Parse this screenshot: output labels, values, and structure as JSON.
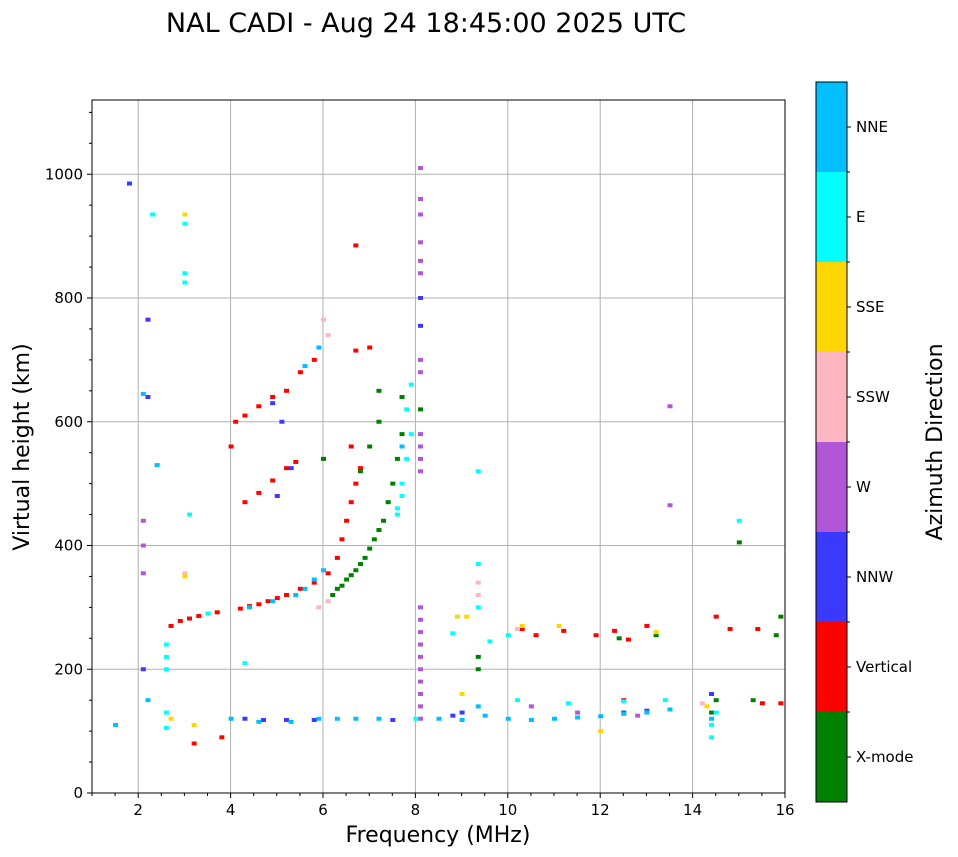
{
  "chart_data": {
    "type": "scatter",
    "title": "NAL CADI - Aug 24 18:45:00 2025 UTC",
    "xlabel": "Frequency (MHz)",
    "ylabel": "Virtual height (km)",
    "xlim": [
      1,
      16
    ],
    "ylim": [
      0,
      1120
    ],
    "x_ticks": [
      2,
      4,
      6,
      8,
      10,
      12,
      14,
      16
    ],
    "y_ticks": [
      0,
      200,
      400,
      600,
      800,
      1000
    ],
    "grid": true,
    "colorbar": {
      "title": "Azimuth Direction",
      "categories": [
        {
          "name": "X-mode",
          "color": "#008000"
        },
        {
          "name": "Vertical",
          "color": "#ff0000"
        },
        {
          "name": "NNW",
          "color": "#3a3aff"
        },
        {
          "name": "W",
          "color": "#b156d6"
        },
        {
          "name": "SSW",
          "color": "#ffb6c1"
        },
        {
          "name": "SSE",
          "color": "#ffd700"
        },
        {
          "name": "E",
          "color": "#00ffff"
        },
        {
          "name": "NNE",
          "color": "#00bfff"
        }
      ]
    },
    "series": [
      {
        "name": "X-mode",
        "points": [
          [
            6.2,
            320
          ],
          [
            6.3,
            330
          ],
          [
            6.4,
            335
          ],
          [
            6.5,
            345
          ],
          [
            6.6,
            352
          ],
          [
            6.7,
            360
          ],
          [
            6.8,
            370
          ],
          [
            6.9,
            380
          ],
          [
            7.0,
            395
          ],
          [
            7.1,
            410
          ],
          [
            7.2,
            425
          ],
          [
            7.3,
            440
          ],
          [
            7.4,
            470
          ],
          [
            7.5,
            500
          ],
          [
            7.6,
            540
          ],
          [
            7.7,
            580
          ],
          [
            7.0,
            560
          ],
          [
            7.2,
            600
          ],
          [
            6.8,
            520
          ],
          [
            9.35,
            220
          ],
          [
            9.35,
            200
          ],
          [
            12.4,
            250
          ],
          [
            13.2,
            255
          ],
          [
            14.4,
            130
          ],
          [
            14.5,
            150
          ],
          [
            15.3,
            150
          ],
          [
            15.8,
            255
          ],
          [
            15.9,
            285
          ],
          [
            6.0,
            540
          ],
          [
            7.7,
            640
          ],
          [
            7.2,
            650
          ],
          [
            8.1,
            620
          ],
          [
            15.0,
            405
          ]
        ]
      },
      {
        "name": "Vertical",
        "points": [
          [
            2.7,
            270
          ],
          [
            2.9,
            278
          ],
          [
            3.1,
            282
          ],
          [
            3.3,
            286
          ],
          [
            3.5,
            290
          ],
          [
            3.7,
            292
          ],
          [
            4.2,
            298
          ],
          [
            4.4,
            302
          ],
          [
            4.6,
            305
          ],
          [
            4.8,
            310
          ],
          [
            5.0,
            315
          ],
          [
            5.2,
            320
          ],
          [
            5.5,
            330
          ],
          [
            5.8,
            340
          ],
          [
            6.1,
            355
          ],
          [
            6.3,
            380
          ],
          [
            6.4,
            410
          ],
          [
            6.5,
            440
          ],
          [
            6.6,
            470
          ],
          [
            6.7,
            500
          ],
          [
            6.8,
            525
          ],
          [
            6.6,
            560
          ],
          [
            4.0,
            560
          ],
          [
            4.1,
            600
          ],
          [
            4.3,
            610
          ],
          [
            4.6,
            625
          ],
          [
            4.9,
            640
          ],
          [
            5.2,
            650
          ],
          [
            5.5,
            680
          ],
          [
            5.8,
            700
          ],
          [
            4.3,
            470
          ],
          [
            4.6,
            485
          ],
          [
            4.9,
            505
          ],
          [
            5.2,
            525
          ],
          [
            5.4,
            535
          ],
          [
            6.7,
            715
          ],
          [
            6.7,
            885
          ],
          [
            7.0,
            720
          ],
          [
            10.3,
            265
          ],
          [
            10.6,
            255
          ],
          [
            11.2,
            262
          ],
          [
            11.9,
            255
          ],
          [
            12.3,
            262
          ],
          [
            12.6,
            248
          ],
          [
            13.0,
            270
          ],
          [
            14.5,
            285
          ],
          [
            14.8,
            265
          ],
          [
            15.4,
            265
          ],
          [
            15.5,
            145
          ],
          [
            15.9,
            145
          ],
          [
            3.8,
            90
          ],
          [
            3.2,
            80
          ],
          [
            12.5,
            150
          ]
        ]
      },
      {
        "name": "NNW",
        "points": [
          [
            1.8,
            985
          ],
          [
            2.2,
            765
          ],
          [
            2.2,
            640
          ],
          [
            2.1,
            200
          ],
          [
            4.3,
            120
          ],
          [
            4.7,
            118
          ],
          [
            5.2,
            118
          ],
          [
            5.8,
            118
          ],
          [
            7.5,
            118
          ],
          [
            8.8,
            125
          ],
          [
            9.0,
            130
          ],
          [
            12.5,
            130
          ],
          [
            13.0,
            133
          ],
          [
            14.4,
            160
          ],
          [
            8.1,
            800
          ],
          [
            8.1,
            755
          ],
          [
            5.0,
            480
          ],
          [
            5.3,
            525
          ],
          [
            4.9,
            630
          ],
          [
            5.1,
            600
          ]
        ]
      },
      {
        "name": "W",
        "points": [
          [
            2.1,
            440
          ],
          [
            2.1,
            400
          ],
          [
            2.1,
            355
          ],
          [
            8.1,
            1010
          ],
          [
            8.1,
            960
          ],
          [
            8.1,
            935
          ],
          [
            8.1,
            890
          ],
          [
            8.1,
            860
          ],
          [
            8.1,
            840
          ],
          [
            8.1,
            700
          ],
          [
            8.1,
            680
          ],
          [
            8.1,
            580
          ],
          [
            8.1,
            560
          ],
          [
            8.1,
            540
          ],
          [
            8.1,
            520
          ],
          [
            8.1,
            300
          ],
          [
            8.1,
            280
          ],
          [
            8.1,
            260
          ],
          [
            8.1,
            240
          ],
          [
            8.1,
            220
          ],
          [
            8.1,
            200
          ],
          [
            8.1,
            180
          ],
          [
            8.1,
            160
          ],
          [
            8.1,
            140
          ],
          [
            8.1,
            120
          ],
          [
            13.5,
            625
          ],
          [
            13.5,
            465
          ],
          [
            10.5,
            140
          ],
          [
            11.5,
            130
          ],
          [
            12.8,
            125
          ]
        ]
      },
      {
        "name": "SSW",
        "points": [
          [
            6.0,
            765
          ],
          [
            6.1,
            740
          ],
          [
            5.9,
            300
          ],
          [
            6.1,
            310
          ],
          [
            9.35,
            320
          ],
          [
            9.35,
            340
          ],
          [
            10.2,
            265
          ],
          [
            14.2,
            145
          ],
          [
            3.0,
            355
          ]
        ]
      },
      {
        "name": "SSE",
        "points": [
          [
            3.0,
            935
          ],
          [
            3.0,
            350
          ],
          [
            2.7,
            120
          ],
          [
            8.9,
            285
          ],
          [
            9.1,
            285
          ],
          [
            10.3,
            270
          ],
          [
            11.1,
            270
          ],
          [
            12.0,
            100
          ],
          [
            13.2,
            260
          ],
          [
            14.3,
            140
          ],
          [
            9.0,
            160
          ],
          [
            3.2,
            110
          ]
        ]
      },
      {
        "name": "E",
        "points": [
          [
            3.0,
            920
          ],
          [
            3.0,
            840
          ],
          [
            3.0,
            825
          ],
          [
            2.6,
            240
          ],
          [
            2.6,
            220
          ],
          [
            2.6,
            200
          ],
          [
            2.6,
            130
          ],
          [
            2.6,
            105
          ],
          [
            2.3,
            935
          ],
          [
            7.6,
            460
          ],
          [
            7.7,
            500
          ],
          [
            7.8,
            540
          ],
          [
            7.9,
            580
          ],
          [
            7.8,
            620
          ],
          [
            7.9,
            660
          ],
          [
            7.6,
            450
          ],
          [
            7.7,
            480
          ],
          [
            8.0,
            120
          ],
          [
            9.35,
            370
          ],
          [
            9.35,
            300
          ],
          [
            9.35,
            520
          ],
          [
            15.0,
            440
          ],
          [
            14.4,
            110
          ],
          [
            14.4,
            90
          ],
          [
            14.5,
            130
          ],
          [
            10.2,
            150
          ],
          [
            11.3,
            145
          ],
          [
            12.5,
            148
          ],
          [
            13.4,
            150
          ],
          [
            8.8,
            258
          ],
          [
            9.6,
            245
          ],
          [
            10.0,
            255
          ],
          [
            4.3,
            210
          ],
          [
            3.5,
            290
          ],
          [
            3.1,
            450
          ]
        ]
      },
      {
        "name": "NNE",
        "points": [
          [
            2.1,
            645
          ],
          [
            2.4,
            530
          ],
          [
            4.0,
            120
          ],
          [
            4.6,
            115
          ],
          [
            5.3,
            115
          ],
          [
            5.9,
            120
          ],
          [
            6.3,
            120
          ],
          [
            6.7,
            120
          ],
          [
            7.2,
            120
          ],
          [
            8.5,
            120
          ],
          [
            9.0,
            118
          ],
          [
            9.5,
            125
          ],
          [
            10.0,
            120
          ],
          [
            10.5,
            118
          ],
          [
            11.0,
            120
          ],
          [
            11.5,
            122
          ],
          [
            12.0,
            124
          ],
          [
            12.5,
            128
          ],
          [
            13.0,
            130
          ],
          [
            13.5,
            135
          ],
          [
            5.6,
            690
          ],
          [
            5.9,
            720
          ],
          [
            4.4,
            300
          ],
          [
            4.9,
            310
          ],
          [
            5.4,
            320
          ],
          [
            5.6,
            330
          ],
          [
            5.8,
            345
          ],
          [
            6.0,
            360
          ],
          [
            7.7,
            560
          ],
          [
            2.2,
            150
          ],
          [
            1.5,
            110
          ],
          [
            9.35,
            140
          ],
          [
            14.4,
            120
          ]
        ]
      }
    ]
  }
}
